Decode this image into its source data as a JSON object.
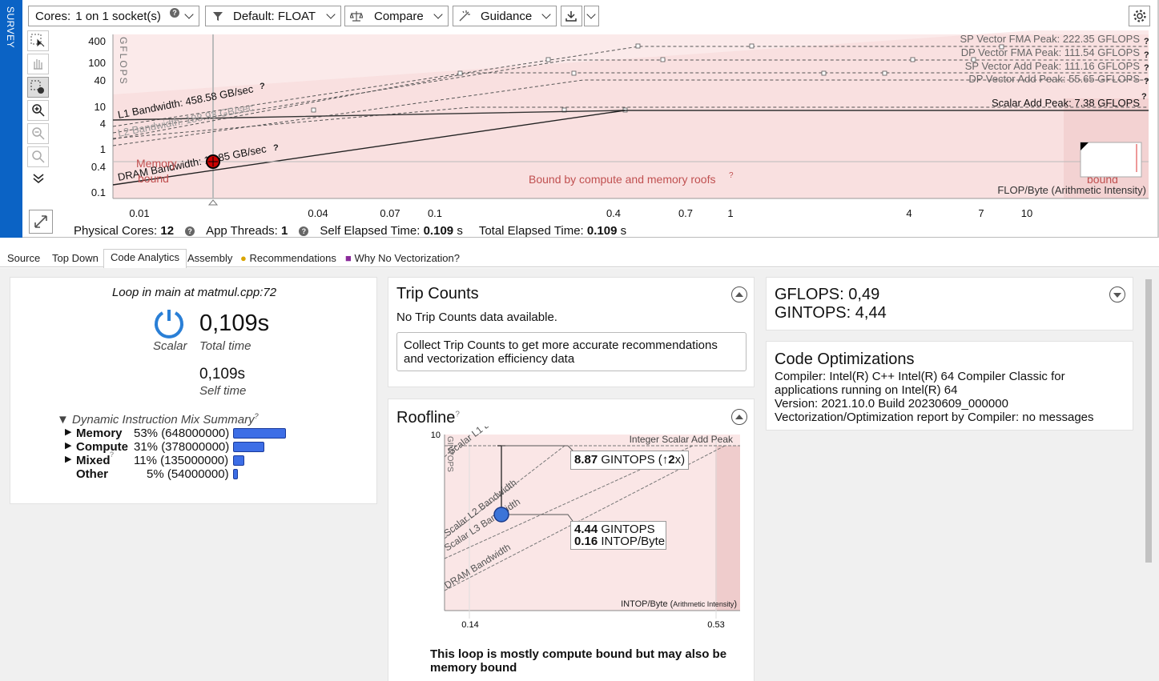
{
  "sidebar": {
    "survey_label": "SURVEY"
  },
  "toolbar": {
    "cores_label": "Cores:",
    "cores_value": "1 on 1 socket(s)",
    "filter_value": "Default: FLOAT",
    "compare_label": "Compare",
    "guidance_label": "Guidance"
  },
  "roofline": {
    "y_axis_label": "GFLOPS",
    "x_axis_label": "FLOP/Byte (Arithmetic Intensity)",
    "y_ticks": [
      "400",
      "100",
      "40",
      "10",
      "4",
      "1",
      "0.4",
      "0.1"
    ],
    "x_ticks": [
      "0.01",
      "0.04",
      "0.07",
      "0.1",
      "0.4",
      "0.7",
      "1",
      "4",
      "7",
      "10"
    ],
    "roofs": [
      "SP Vector FMA Peak: 222.35 GFLOPS",
      "DP Vector FMA Peak: 111.54 GFLOPS",
      "SP Vector Add Peak: 111.16 GFLOPS",
      "DP Vector Add Peak: 55.65 GFLOPS",
      "Scalar Add Peak: 7.38 GFLOPS"
    ],
    "bandwidths": [
      "L1 Bandwidth: 458.58 GB/sec",
      "L2 Bandwidth: 188.93 GB/sec",
      "DRAM Bandwidth: 16.85 GB/sec"
    ],
    "region_memory": "Memory",
    "region_memory_bound": "bound",
    "region_both": "Bound by compute and memory roofs",
    "region_compute_bound": "bound",
    "help_glyph": "?"
  },
  "stats": {
    "physical_cores_label": "Physical Cores:",
    "physical_cores_value": "12",
    "app_threads_label": "App Threads:",
    "app_threads_value": "1",
    "self_elapsed_label": "Self Elapsed Time:",
    "self_elapsed_value": "0.109",
    "total_elapsed_label": "Total Elapsed Time:",
    "total_elapsed_value": "0.109",
    "unit": "s"
  },
  "tabs": [
    "Source",
    "Top Down",
    "Code Analytics",
    "Assembly",
    "Recommendations",
    "Why No Vectorization?"
  ],
  "loop_panel": {
    "title": "Loop in main at matmul.cpp:72",
    "type_label": "Scalar",
    "total_time": "0,109s",
    "total_time_label": "Total time",
    "self_time": "0,109s",
    "self_time_label": "Self time",
    "mix_title": "Dynamic Instruction Mix Summary",
    "mix": [
      {
        "name": "Memory",
        "value": "53% (648000000)",
        "percent": 53
      },
      {
        "name": "Compute",
        "value": "31% (378000000)",
        "percent": 31
      },
      {
        "name": "Mixed",
        "value": "11% (135000000)",
        "percent": 11
      },
      {
        "name": "Other",
        "value": "5% (54000000)",
        "percent": 5
      }
    ]
  },
  "trip_counts": {
    "title": "Trip Counts",
    "no_data": "No Trip Counts data available.",
    "note": "Collect Trip Counts to get more accurate recommendations and vectorization efficiency data"
  },
  "mini_roofline": {
    "title": "Roofline",
    "y_label": "GINTOPS",
    "y_tick": "10",
    "peak_label": "Integer Scalar Add Peak",
    "lines": [
      "Scalar L1 B",
      "Scalar L2 Bandwidth",
      "Scalar L3 Bandwidth",
      "DRAM Bandwidth"
    ],
    "callout_top_value": "8.87",
    "callout_top_text": "GINTOPS (↑",
    "callout_top_factor": "2",
    "callout_top_end": "x)",
    "callout_value1": "4.44",
    "callout_text1": "GINTOPS",
    "callout_value2": "0.16",
    "callout_text2": "INTOP/Byte",
    "x_axis_label": "INTOP/Byte",
    "x_axis_sub": "Arithmetic Intensity",
    "x_ticks": [
      "0.14",
      "0.53"
    ],
    "verdict": "This loop is mostly compute bound but may also be memory bound"
  },
  "gflops_panel": {
    "gflops_label": "GFLOPS:",
    "gflops_value": "0,49",
    "gintops_label": "GINTOPS:",
    "gintops_value": "4,44"
  },
  "code_opt": {
    "title": "Code Optimizations",
    "compiler": "Compiler: Intel(R) C++ Intel(R) 64 Compiler Classic for applications running on Intel(R) 64",
    "version": "Version: 2021.10.0 Build 20230609_000000",
    "report": "Vectorization/Optimization report by Compiler: no messages"
  }
}
